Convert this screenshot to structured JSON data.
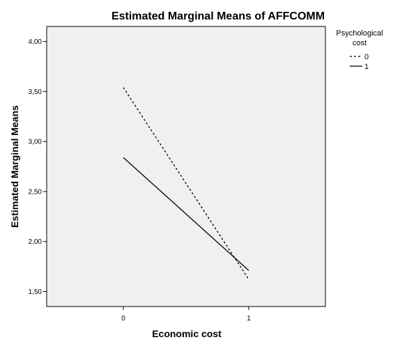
{
  "chart_data": {
    "type": "line",
    "title": "Estimated Marginal Means of AFFCOMM",
    "xlabel": "Economic cost",
    "ylabel": "Estimated Marginal Means",
    "categories": [
      "0",
      "1"
    ],
    "ylim": [
      1.35,
      4.15
    ],
    "yticks": [
      1.5,
      2.0,
      2.5,
      3.0,
      3.5,
      4.0
    ],
    "ytick_labels": [
      "1,50",
      "2,00",
      "2,50",
      "3,00",
      "3,50",
      "4,00"
    ],
    "legend_title_lines": [
      "Psychological",
      "cost"
    ],
    "legend_position": "right",
    "plot_background": "#f0f0f0",
    "grid": false,
    "series": [
      {
        "name": "0",
        "values": [
          3.54,
          1.62
        ],
        "line_style": "dashed",
        "color": "#000000"
      },
      {
        "name": "1",
        "values": [
          2.84,
          1.71
        ],
        "line_style": "solid",
        "color": "#000000"
      }
    ]
  }
}
